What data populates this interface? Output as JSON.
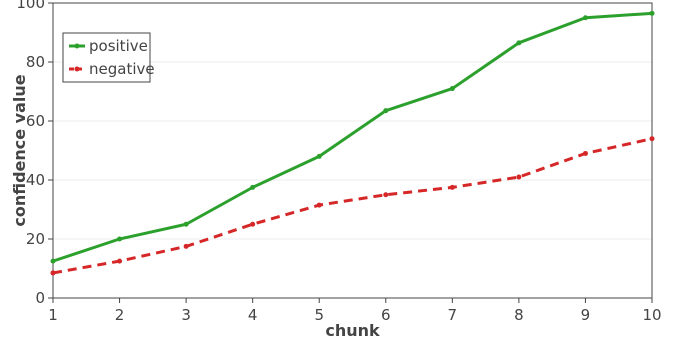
{
  "chart_data": {
    "type": "line",
    "title": "",
    "xlabel": "chunk",
    "ylabel": "confidence value",
    "x": [
      1,
      2,
      3,
      4,
      5,
      6,
      7,
      8,
      9,
      10
    ],
    "xlim": [
      1,
      10
    ],
    "ylim": [
      0,
      100
    ],
    "xticks": [
      "1",
      "2",
      "3",
      "4",
      "5",
      "6",
      "7",
      "8",
      "9",
      "10"
    ],
    "yticks": [
      "0",
      "20",
      "40",
      "60",
      "80",
      "100"
    ],
    "grid": true,
    "legend_position": "top-left",
    "series": [
      {
        "name": "positive",
        "values": [
          12.5,
          20,
          25,
          37.5,
          48,
          63.5,
          71,
          86.5,
          95,
          96.5
        ],
        "color": "#2ca02c",
        "line_style": "solid"
      },
      {
        "name": "negative",
        "values": [
          8.5,
          12.5,
          17.5,
          25,
          31.5,
          35,
          37.5,
          41,
          49,
          54
        ],
        "color": "#d62728",
        "line_style": "dashed"
      }
    ]
  }
}
